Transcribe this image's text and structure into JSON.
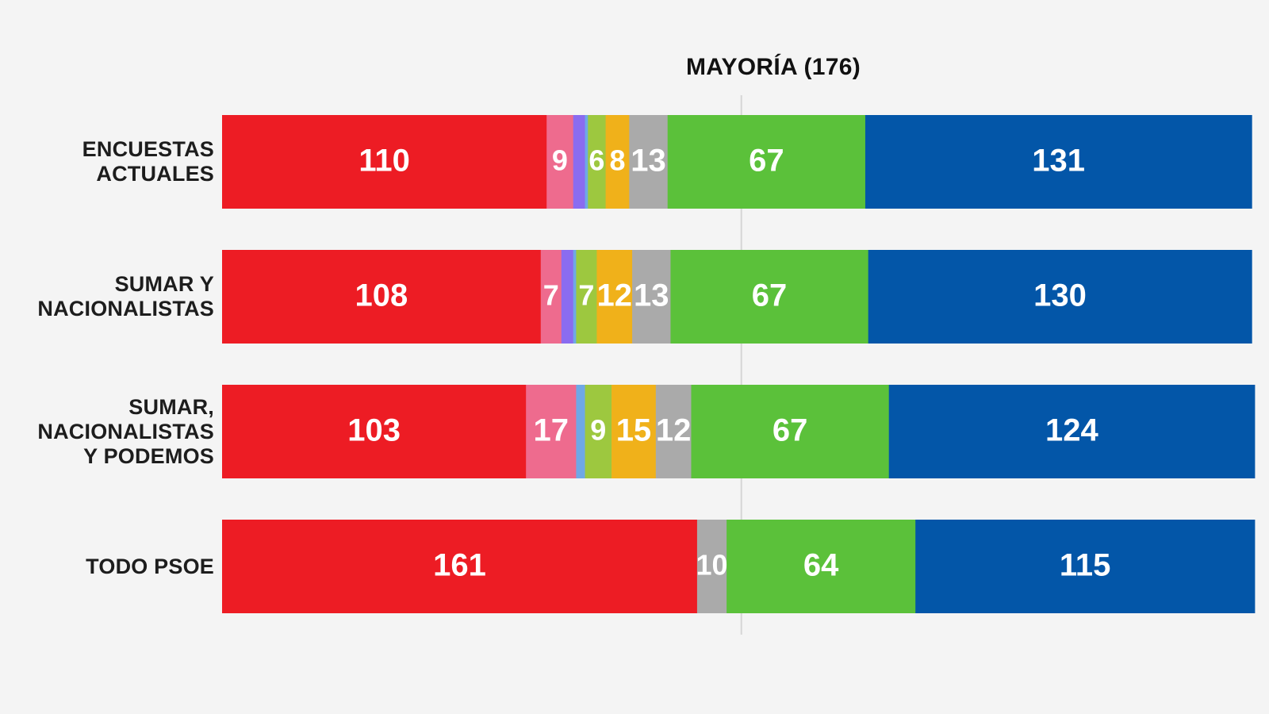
{
  "chart_data": {
    "type": "bar",
    "orientation": "horizontal",
    "stacked": true,
    "xlim": [
      0,
      350
    ],
    "majority": {
      "value": 176,
      "label": "MAYORÍA (176)"
    },
    "categories": [
      [
        "ENCUESTAS",
        "ACTUALES"
      ],
      [
        "SUMAR Y",
        "NACIONALISTAS"
      ],
      [
        "SUMAR,",
        "NACIONALISTAS",
        "Y PODEMOS"
      ],
      [
        "TODO PSOE"
      ]
    ],
    "series": [
      {
        "color": "#ed1c24",
        "values": [
          110,
          108,
          103,
          161
        ]
      },
      {
        "color": "#ee6b8e",
        "values": [
          9,
          7,
          17,
          0
        ]
      },
      {
        "color": "#8a6cf0",
        "values": [
          4,
          4,
          0,
          0
        ]
      },
      {
        "color": "#6fa8e6",
        "values": [
          1,
          1,
          3,
          0
        ]
      },
      {
        "color": "#9dc83f",
        "values": [
          6,
          7,
          9,
          0
        ]
      },
      {
        "color": "#f0b11a",
        "values": [
          8,
          12,
          15,
          0
        ]
      },
      {
        "color": "#aaaaaa",
        "values": [
          13,
          13,
          12,
          10
        ]
      },
      {
        "color": "#5bc13a",
        "values": [
          67,
          67,
          67,
          64
        ]
      },
      {
        "color": "#0356a8",
        "values": [
          131,
          130,
          124,
          115
        ]
      }
    ],
    "data_labels": [
      [
        110,
        9,
        null,
        null,
        6,
        8,
        13,
        67,
        131
      ],
      [
        108,
        7,
        null,
        null,
        7,
        12,
        13,
        67,
        130
      ],
      [
        103,
        17,
        null,
        null,
        9,
        15,
        12,
        67,
        124
      ],
      [
        161,
        null,
        null,
        null,
        null,
        null,
        10,
        64,
        115
      ]
    ]
  }
}
